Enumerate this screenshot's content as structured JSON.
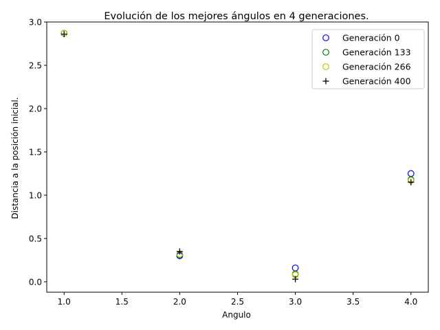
{
  "chart_data": {
    "type": "scatter",
    "title": "Evolución de los mejores ángulos en 4 generaciones.",
    "xlabel": "Angulo",
    "ylabel": "Distancia a la posición inicial.",
    "xlim": [
      0.85,
      4.15
    ],
    "ylim": [
      -0.12,
      3.0
    ],
    "x_ticks": [
      "1.0",
      "1.5",
      "2.0",
      "2.5",
      "3.0",
      "3.5",
      "4.0"
    ],
    "y_ticks": [
      "0.0",
      "0.5",
      "1.0",
      "1.5",
      "2.0",
      "2.5",
      "3.0"
    ],
    "grid": false,
    "legend_position": "top-right",
    "x": [
      1,
      2,
      3,
      4
    ],
    "series": [
      {
        "name": "Generación 0",
        "marker": "circle",
        "color": "#0000ff",
        "values": [
          2.87,
          0.3,
          0.16,
          1.25
        ]
      },
      {
        "name": "Generación 133",
        "marker": "circle",
        "color": "#008000",
        "values": [
          2.87,
          0.31,
          0.09,
          1.18
        ]
      },
      {
        "name": "Generación 266",
        "marker": "circle",
        "color": "#bfbf00",
        "values": [
          2.87,
          0.32,
          0.08,
          1.17
        ]
      },
      {
        "name": "Generación 400",
        "marker": "plus",
        "color": "#000000",
        "values": [
          2.86,
          0.35,
          0.03,
          1.15
        ]
      }
    ]
  }
}
